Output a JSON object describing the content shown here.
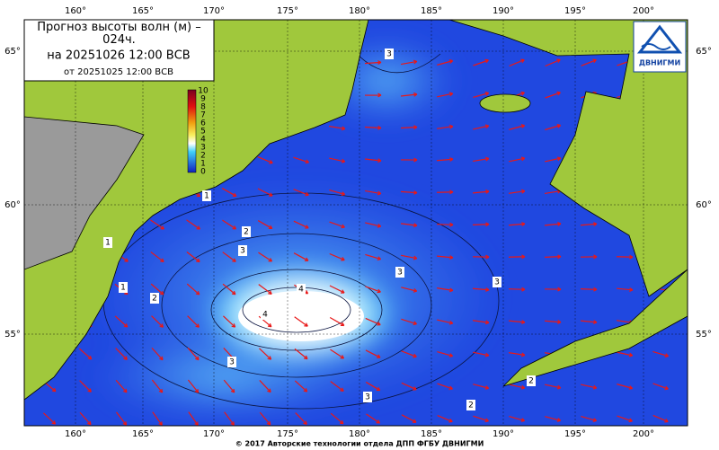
{
  "legend": {
    "title": "Прогноз высоты волн (м) – 024ч.",
    "valid": "на 20251026 12:00 ВСВ",
    "issued": "от 20251025 12:00 ВСВ"
  },
  "colorbar": {
    "labels": [
      10,
      9,
      8,
      7,
      6,
      5,
      4,
      3,
      2,
      1,
      0
    ]
  },
  "longitudes": [
    "160°",
    "165°",
    "170°",
    "175°",
    "180°",
    "185°",
    "190°",
    "195°",
    "200°"
  ],
  "latitudes": [
    "65°",
    "60°",
    "55°"
  ],
  "contour_labels": [
    "3",
    "1",
    "2",
    "2",
    "3",
    "3",
    "4",
    "4",
    "3",
    "2",
    "3",
    "3",
    "2",
    "1",
    "1"
  ],
  "logo": "ДВНИГМИ",
  "footer": "© 2017 Авторские технологии отдела ДПП ФГБУ ДВНИГМИ"
}
